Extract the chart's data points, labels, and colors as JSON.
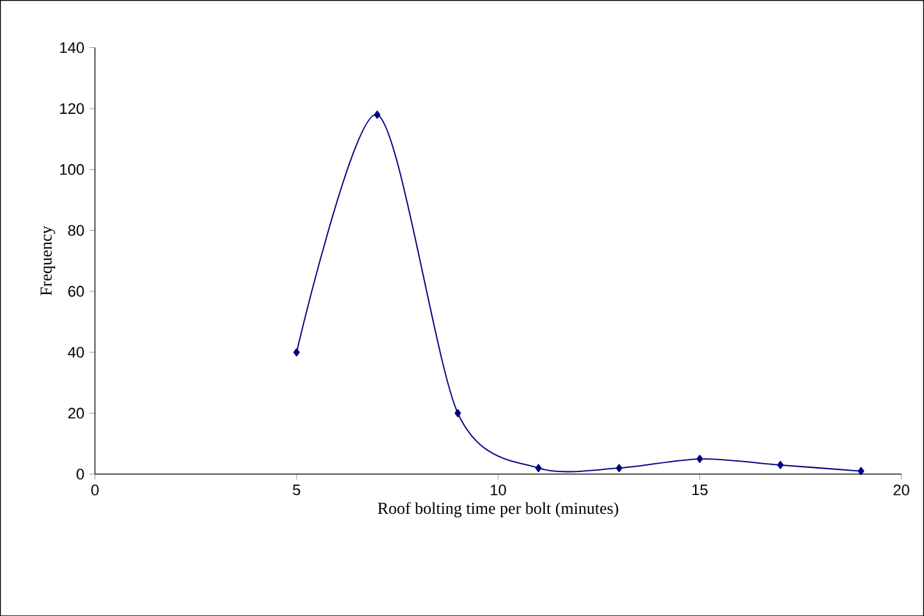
{
  "chart_data": {
    "type": "line",
    "xlabel": "Roof bolting time per bolt (minutes)",
    "ylabel": "Frequency",
    "series": [
      {
        "color": "#000080",
        "x": [
          5,
          7,
          9,
          11,
          13,
          15,
          17,
          19
        ],
        "values": [
          40,
          118,
          20,
          2,
          2,
          5,
          3,
          1
        ]
      }
    ],
    "xlim": [
      0,
      20
    ],
    "xticks": [
      0,
      5,
      10,
      15,
      20
    ],
    "ylim": [
      0,
      140
    ],
    "yticks": [
      0,
      20,
      40,
      60,
      80,
      100,
      120,
      140
    ],
    "marker": "diamond",
    "line_style": "solid",
    "grid": false
  }
}
